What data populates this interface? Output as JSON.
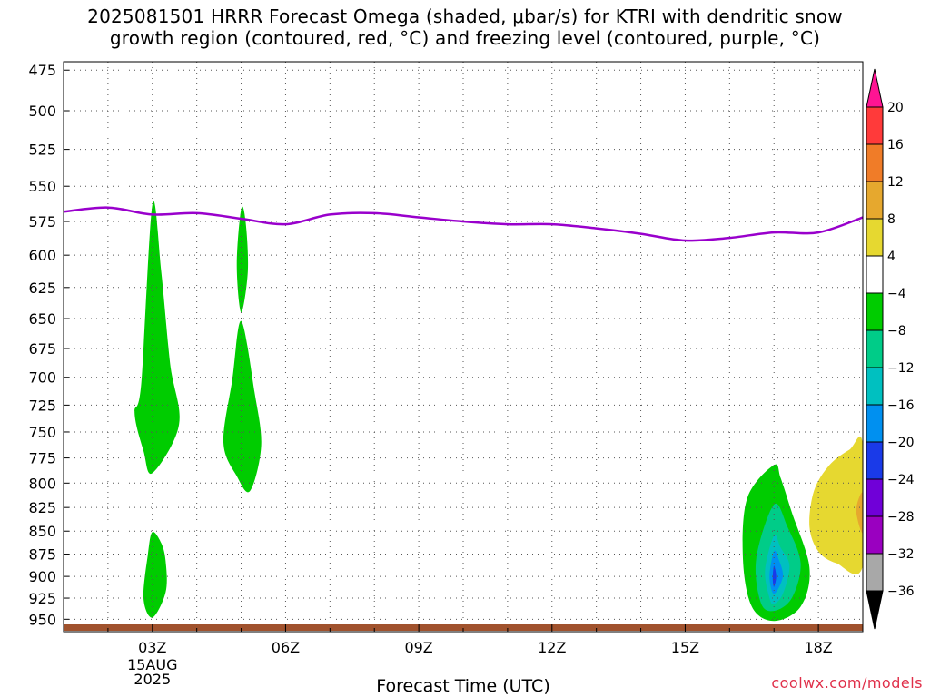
{
  "title": {
    "line1": "2025081501 HRRR Forecast Omega (shaded, μbar/s) for KTRI with dendritic snow",
    "line2": "growth region (contoured, red, °C) and freezing level (contoured, purple, °C)"
  },
  "chart_data": {
    "type": "heatmap",
    "xlabel": "Forecast Time (UTC)",
    "ylabel": "",
    "x_ticks": [
      "03Z",
      "06Z",
      "09Z",
      "12Z",
      "15Z",
      "18Z"
    ],
    "x_tick_hours": [
      3,
      6,
      9,
      12,
      15,
      18
    ],
    "x_first_tick_date": [
      "15AUG",
      "2025"
    ],
    "xlim_hours": [
      1,
      19
    ],
    "y_ticks": [
      475,
      500,
      525,
      550,
      575,
      600,
      625,
      650,
      675,
      700,
      725,
      750,
      775,
      800,
      825,
      850,
      875,
      900,
      925,
      950
    ],
    "ylim_hPa": [
      470,
      965
    ],
    "y_scale": "log-pressure (inverted)",
    "grid": true,
    "colorbar": {
      "labels": [
        "20",
        "16",
        "12",
        "8",
        "4",
        "−4",
        "−8",
        "−12",
        "−16",
        "−20",
        "−24",
        "−28",
        "−32",
        "−36"
      ],
      "bins": [
        {
          "from": 20,
          "to": 24,
          "color": "#ff1493"
        },
        {
          "from": 16,
          "to": 20,
          "color": "#ff3a3a"
        },
        {
          "from": 12,
          "to": 16,
          "color": "#f07c28"
        },
        {
          "from": 8,
          "to": 12,
          "color": "#e6a82e"
        },
        {
          "from": 4,
          "to": 8,
          "color": "#e6d830"
        },
        {
          "from": -4,
          "to": 4,
          "color": "#ffffff"
        },
        {
          "from": -8,
          "to": -4,
          "color": "#00cc00"
        },
        {
          "from": -12,
          "to": -8,
          "color": "#00cc88"
        },
        {
          "from": -16,
          "to": -12,
          "color": "#00c0c0"
        },
        {
          "from": -20,
          "to": -16,
          "color": "#0090f0"
        },
        {
          "from": -24,
          "to": -20,
          "color": "#1a3ae8"
        },
        {
          "from": -28,
          "to": -24,
          "color": "#7000d8"
        },
        {
          "from": -32,
          "to": -28,
          "color": "#9a00c0"
        },
        {
          "from": -36,
          "to": -32,
          "color": "#a8a8a8"
        },
        {
          "from": -40,
          "to": -36,
          "color": "#000000"
        }
      ]
    },
    "freezing_level": {
      "color": "#9900cc",
      "points": [
        [
          1,
          568
        ],
        [
          2,
          565
        ],
        [
          3,
          570
        ],
        [
          4,
          569
        ],
        [
          5,
          573
        ],
        [
          6,
          577
        ],
        [
          7,
          570
        ],
        [
          8,
          569
        ],
        [
          9,
          572
        ],
        [
          10,
          575
        ],
        [
          11,
          577
        ],
        [
          12,
          577
        ],
        [
          13,
          580
        ],
        [
          14,
          584
        ],
        [
          15,
          589
        ],
        [
          16,
          587
        ],
        [
          17,
          583
        ],
        [
          18,
          583
        ],
        [
          19,
          572
        ]
      ]
    },
    "omega_regions": [
      {
        "label": "-4 to -8 green",
        "color": "#00cc00",
        "points": [
          [
            3.0,
            563
          ],
          [
            2.75,
            705
          ],
          [
            2.6,
            732
          ],
          [
            2.8,
            768
          ],
          [
            3.0,
            790
          ],
          [
            3.6,
            743
          ],
          [
            3.4,
            688
          ],
          [
            3.2,
            613
          ]
        ]
      },
      {
        "label": "-4 to -8 green",
        "color": "#00cc00",
        "points": [
          [
            5.0,
            566
          ],
          [
            4.9,
            607
          ],
          [
            5.0,
            645
          ],
          [
            5.15,
            612
          ],
          [
            5.1,
            575
          ]
        ]
      },
      {
        "label": "-4 to -8 green",
        "color": "#00cc00",
        "points": [
          [
            5.0,
            652
          ],
          [
            4.8,
            702
          ],
          [
            4.6,
            760
          ],
          [
            4.9,
            793
          ],
          [
            5.2,
            808
          ],
          [
            5.45,
            763
          ],
          [
            5.3,
            713
          ]
        ]
      },
      {
        "label": "-4 to -8 green",
        "color": "#00cc00",
        "points": [
          [
            3.0,
            851
          ],
          [
            2.9,
            875
          ],
          [
            2.8,
            925
          ],
          [
            3.0,
            948
          ],
          [
            3.3,
            918
          ],
          [
            3.3,
            883
          ],
          [
            3.2,
            863
          ]
        ]
      },
      {
        "label": "-4 to -8 green",
        "color": "#00cc00",
        "points": [
          [
            17.0,
            782
          ],
          [
            16.4,
            815
          ],
          [
            16.3,
            880
          ],
          [
            16.5,
            935
          ],
          [
            17.0,
            952
          ],
          [
            17.6,
            935
          ],
          [
            17.8,
            890
          ],
          [
            17.4,
            830
          ],
          [
            17.15,
            795
          ]
        ]
      },
      {
        "label": "-8 to -12 teal",
        "color": "#00cc88",
        "points": [
          [
            17.0,
            822
          ],
          [
            16.6,
            880
          ],
          [
            16.7,
            930
          ],
          [
            17.0,
            940
          ],
          [
            17.4,
            925
          ],
          [
            17.6,
            885
          ],
          [
            17.3,
            845
          ]
        ]
      },
      {
        "label": "-12 to -16 cyan",
        "color": "#00c0c0",
        "points": [
          [
            17.0,
            855
          ],
          [
            16.8,
            893
          ],
          [
            16.9,
            925
          ],
          [
            17.0,
            932
          ],
          [
            17.2,
            920
          ],
          [
            17.35,
            888
          ],
          [
            17.15,
            868
          ]
        ]
      },
      {
        "label": "-16 to -20 blue",
        "color": "#0090f0",
        "points": [
          [
            17.0,
            872
          ],
          [
            16.9,
            900
          ],
          [
            17.0,
            920
          ],
          [
            17.2,
            900
          ],
          [
            17.1,
            880
          ]
        ]
      },
      {
        "label": "-20 to -24 dark blue",
        "color": "#1a3ae8",
        "points": [
          [
            17.0,
            888
          ],
          [
            16.97,
            902
          ],
          [
            17.0,
            912
          ],
          [
            17.05,
            900
          ]
        ]
      },
      {
        "label": "4 to 8 yellow",
        "color": "#e6d830",
        "points": [
          [
            19.0,
            762
          ],
          [
            18.7,
            767
          ],
          [
            18.25,
            782
          ],
          [
            17.9,
            808
          ],
          [
            17.8,
            845
          ],
          [
            18.0,
            872
          ],
          [
            18.4,
            885
          ],
          [
            19.0,
            888
          ]
        ]
      },
      {
        "label": "8 to 12 orange",
        "color": "#e6a82e",
        "points": [
          [
            19.0,
            810
          ],
          [
            18.85,
            828
          ],
          [
            19.0,
            852
          ]
        ]
      }
    ],
    "terrain_color": "#a0522d"
  },
  "footer": {
    "credit": "coolwx.com/models"
  }
}
